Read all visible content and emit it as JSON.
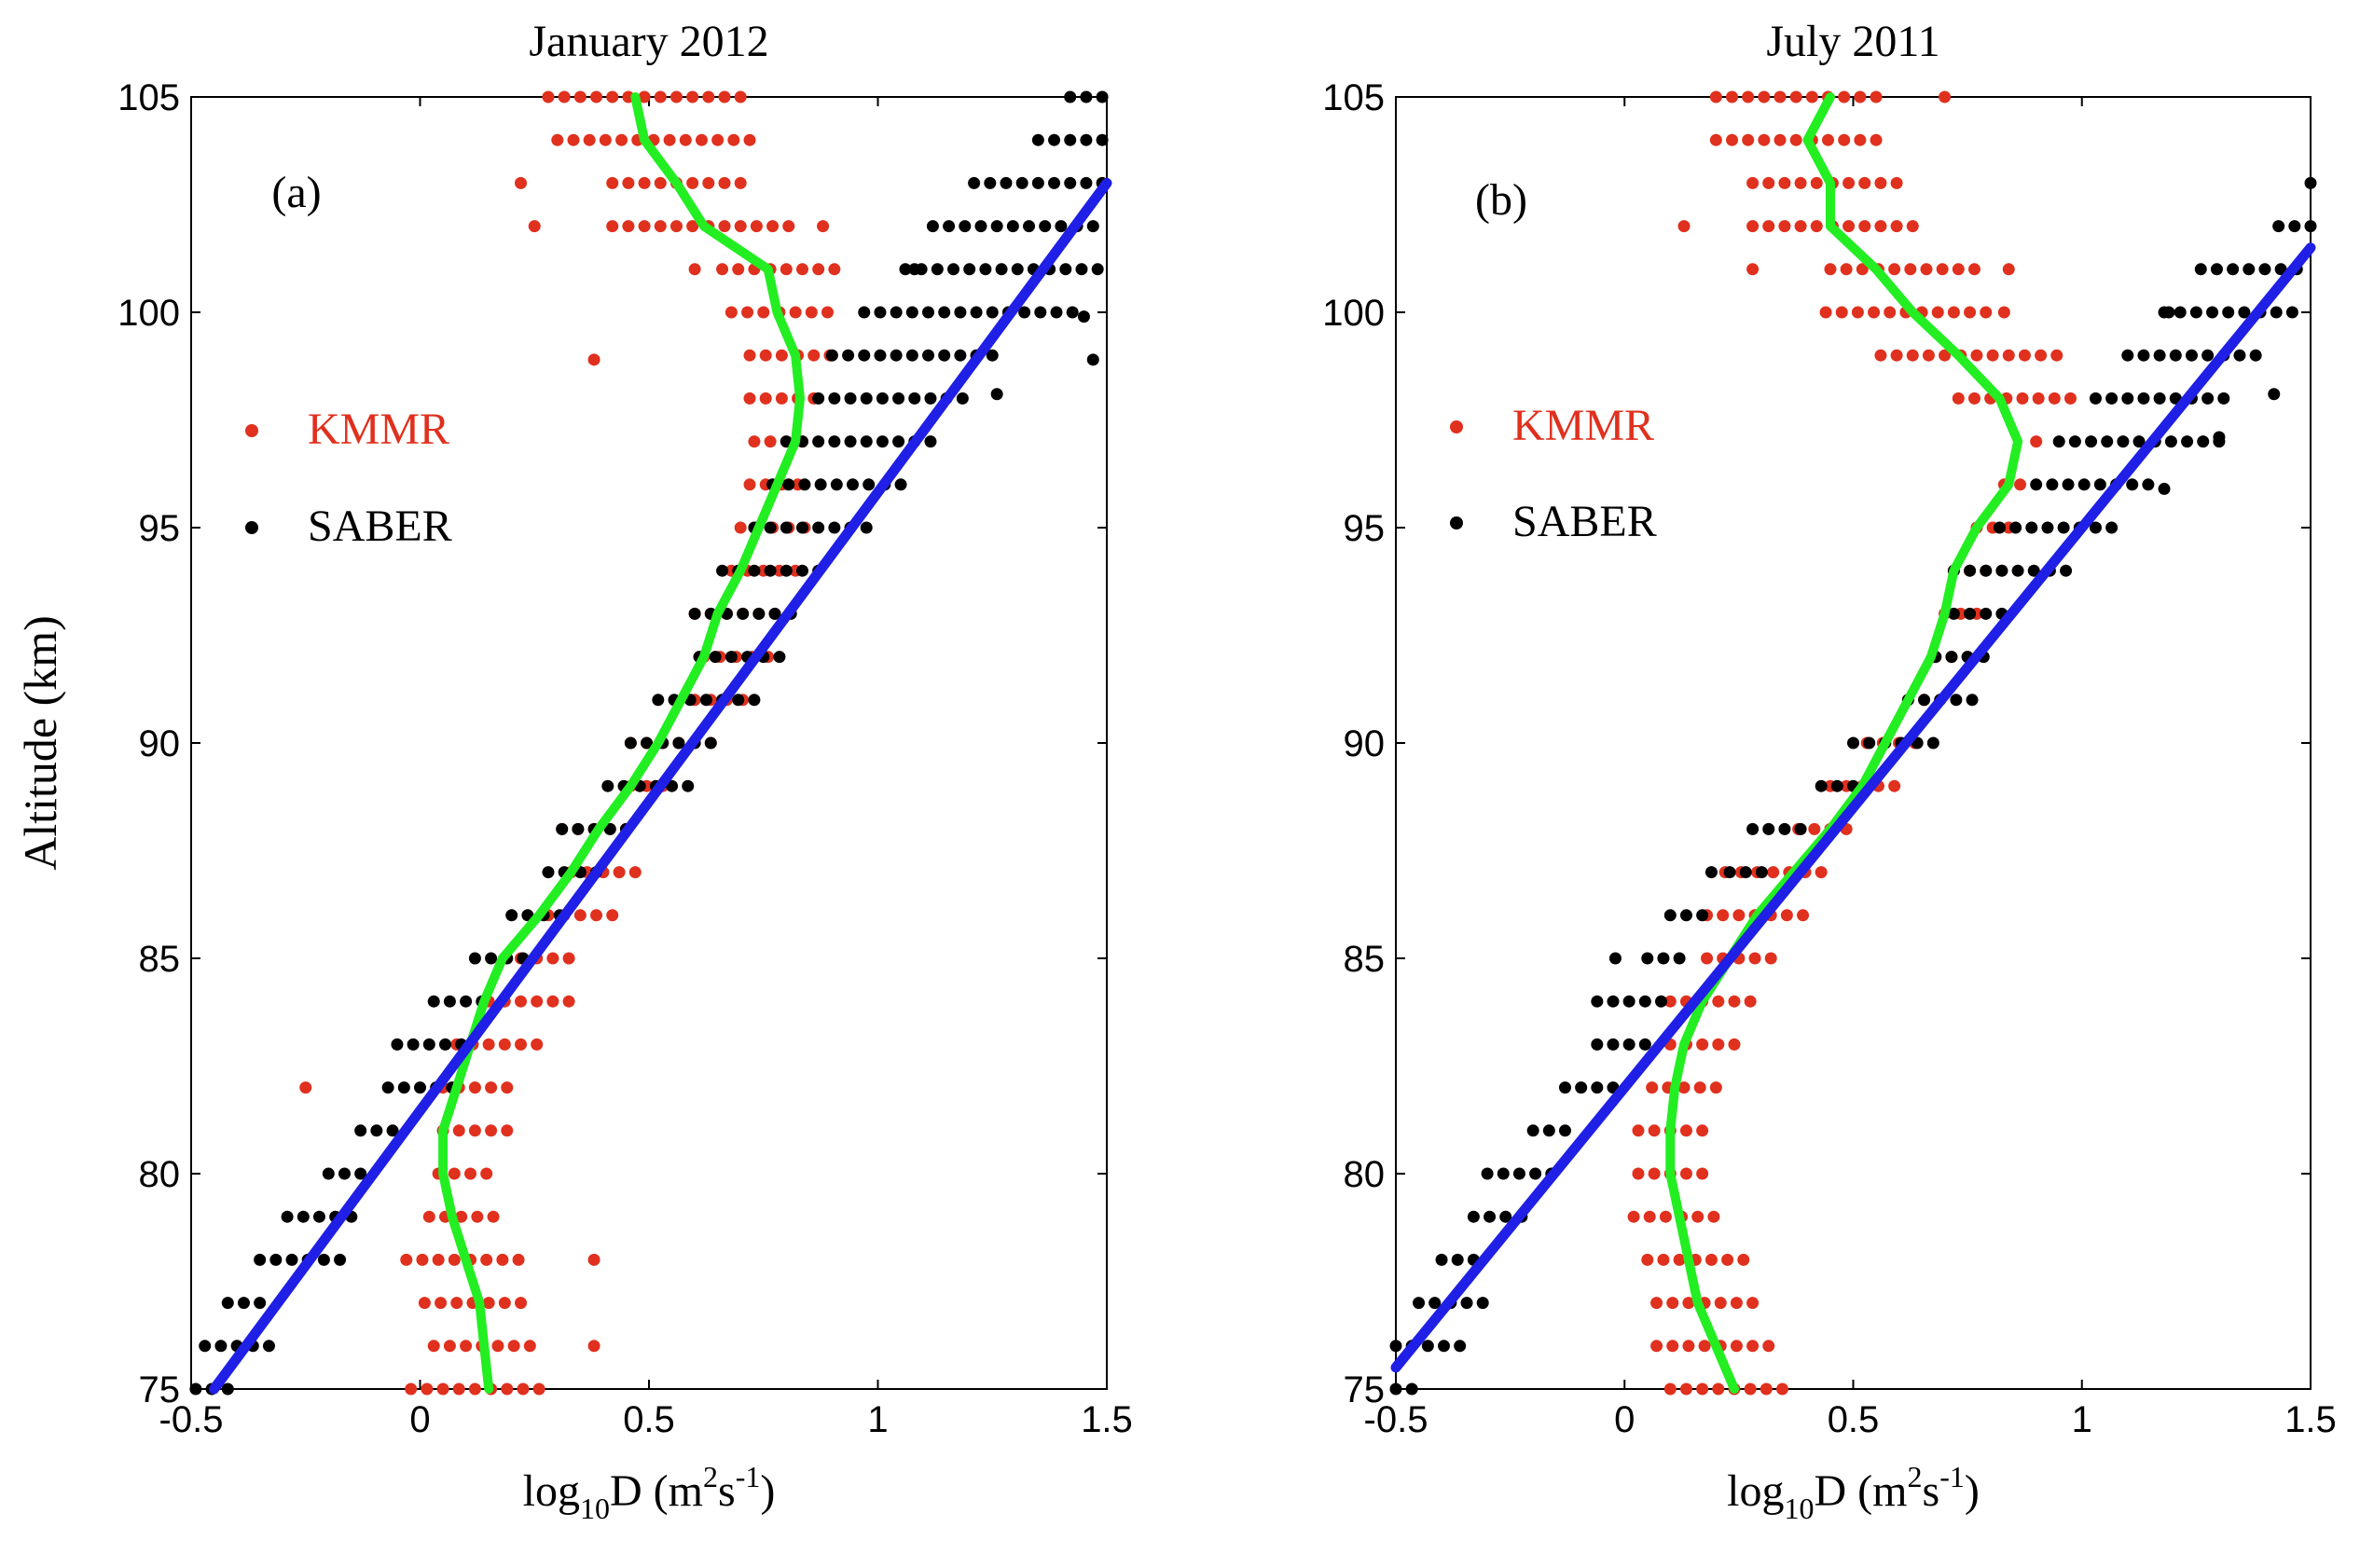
{
  "figure": {
    "ylabel": "Altitude (km)",
    "xlabel_parts": {
      "base": "log",
      "sub": "10",
      "var": "D (m",
      "sup1": "2",
      "mid": "s",
      "sup2": "-1",
      "end": ")"
    }
  },
  "colors": {
    "kmmr": "#e0301e",
    "saber": "#000000",
    "green": "#22ee22",
    "blue": "#1f1fe6"
  },
  "chart_data": [
    {
      "type": "scatter",
      "title": "January 2012",
      "panel_label": "(a)",
      "xlim": [
        -0.5,
        1.5
      ],
      "ylim": [
        75,
        105
      ],
      "xticks": [
        -0.5,
        0,
        0.5,
        1,
        1.5
      ],
      "yticks": [
        75,
        80,
        85,
        90,
        95,
        100,
        105
      ],
      "xtick_labels": [
        "-0.5",
        "0",
        "0.5",
        "1",
        "1.5"
      ],
      "ytick_labels": [
        "75",
        "80",
        "85",
        "90",
        "95",
        "100",
        "105"
      ],
      "legend": {
        "kmmr": "KMMR",
        "saber": "SABER"
      },
      "kmmr_rows": [
        [
          75,
          -0.02,
          0.28
        ],
        [
          76,
          0.03,
          0.26
        ],
        [
          77,
          0.01,
          0.24
        ],
        [
          78,
          -0.03,
          0.22
        ],
        [
          79,
          0.02,
          0.19
        ],
        [
          80,
          0.04,
          0.15
        ],
        [
          81,
          0.05,
          0.22
        ],
        [
          82,
          0.05,
          0.2
        ],
        [
          83,
          0.08,
          0.28
        ],
        [
          84,
          0.15,
          0.33
        ],
        [
          85,
          0.22,
          0.35
        ],
        [
          86,
          0.28,
          0.42
        ],
        [
          87,
          0.33,
          0.47
        ],
        [
          88,
          0.31,
          0.48
        ],
        [
          89,
          0.46,
          0.56
        ],
        [
          90,
          0.46,
          0.66
        ],
        [
          91,
          0.6,
          0.73
        ],
        [
          92,
          0.62,
          0.76
        ],
        [
          93,
          0.6,
          0.78
        ],
        [
          94,
          0.68,
          0.84
        ],
        [
          95,
          0.7,
          0.86
        ],
        [
          96,
          0.72,
          0.85
        ],
        [
          97,
          0.73,
          0.86
        ],
        [
          98,
          0.72,
          0.88
        ],
        [
          99,
          0.72,
          0.91
        ],
        [
          100,
          0.68,
          0.92
        ],
        [
          101,
          0.66,
          0.92
        ],
        [
          102,
          0.42,
          0.83
        ],
        [
          103,
          0.42,
          0.72
        ],
        [
          104,
          0.3,
          0.75
        ],
        [
          105,
          0.28,
          0.7
        ]
      ],
      "kmmr_outliers": [
        [
          -0.25,
          82
        ],
        [
          0.38,
          78
        ],
        [
          0.38,
          76
        ],
        [
          0.38,
          98.9
        ],
        [
          0.22,
          103
        ],
        [
          0.25,
          102
        ],
        [
          0.88,
          102
        ],
        [
          0.6,
          101
        ]
      ],
      "saber_rows": [
        [
          75,
          -0.49,
          -0.42
        ],
        [
          76,
          -0.47,
          -0.32
        ],
        [
          77,
          -0.42,
          -0.33
        ],
        [
          78,
          -0.35,
          -0.17
        ],
        [
          79,
          -0.29,
          -0.12
        ],
        [
          80,
          -0.2,
          -0.1
        ],
        [
          81,
          -0.13,
          -0.03
        ],
        [
          82,
          -0.07,
          0.07
        ],
        [
          83,
          -0.05,
          0.1
        ],
        [
          84,
          0.03,
          0.15
        ],
        [
          85,
          0.12,
          0.25
        ],
        [
          86,
          0.2,
          0.33
        ],
        [
          87,
          0.28,
          0.41
        ],
        [
          88,
          0.31,
          0.45
        ],
        [
          89,
          0.41,
          0.59
        ],
        [
          90,
          0.46,
          0.64
        ],
        [
          91,
          0.52,
          0.74
        ],
        [
          92,
          0.61,
          0.79
        ],
        [
          93,
          0.6,
          0.84
        ],
        [
          94,
          0.66,
          0.88
        ],
        [
          95,
          0.73,
          0.98
        ],
        [
          96,
          0.77,
          1.05
        ],
        [
          97,
          0.8,
          1.13
        ],
        [
          98,
          0.87,
          1.19
        ],
        [
          99,
          0.9,
          1.27
        ],
        [
          100,
          0.97,
          1.45
        ],
        [
          101,
          1.06,
          1.5
        ],
        [
          102,
          1.12,
          1.5
        ],
        [
          103,
          1.21,
          1.5
        ],
        [
          104,
          1.35,
          1.5
        ],
        [
          105,
          1.42,
          1.5
        ]
      ],
      "saber_outliers": [
        [
          1.47,
          98.9
        ],
        [
          1.26,
          98.1
        ],
        [
          1.08,
          101
        ],
        [
          1.45,
          99.9
        ]
      ],
      "green_x": [
        0.15,
        0.14,
        0.13,
        0.1,
        0.07,
        0.05,
        0.05,
        0.08,
        0.11,
        0.14,
        0.18,
        0.26,
        0.33,
        0.39,
        0.46,
        0.52,
        0.57,
        0.62,
        0.65,
        0.7,
        0.74,
        0.78,
        0.82,
        0.83,
        0.82,
        0.78,
        0.76,
        0.62,
        0.56,
        0.49,
        0.47
      ],
      "blue_line": [
        [
          -0.45,
          75
        ],
        [
          1.5,
          103
        ]
      ]
    },
    {
      "type": "scatter",
      "title": "July 2011",
      "panel_label": "(b)",
      "xlim": [
        -0.5,
        1.5
      ],
      "ylim": [
        75,
        105
      ],
      "xticks": [
        -0.5,
        0,
        0.5,
        1,
        1.5
      ],
      "yticks": [
        75,
        80,
        85,
        90,
        95,
        100,
        105
      ],
      "xtick_labels": [
        "-0.5",
        "0",
        "0.5",
        "1",
        "1.5"
      ],
      "ytick_labels": [
        "75",
        "80",
        "85",
        "90",
        "95",
        "100",
        "105"
      ],
      "legend": {
        "kmmr": "KMMR",
        "saber": "SABER"
      },
      "kmmr_rows": [
        [
          75,
          0.1,
          0.37
        ],
        [
          76,
          0.07,
          0.34
        ],
        [
          77,
          0.07,
          0.3
        ],
        [
          78,
          0.05,
          0.26
        ],
        [
          79,
          0.02,
          0.2
        ],
        [
          80,
          0.03,
          0.19
        ],
        [
          81,
          0.03,
          0.19
        ],
        [
          82,
          0.06,
          0.2
        ],
        [
          83,
          0.1,
          0.25
        ],
        [
          84,
          0.1,
          0.29
        ],
        [
          85,
          0.18,
          0.32
        ],
        [
          86,
          0.18,
          0.4
        ],
        [
          87,
          0.22,
          0.45
        ],
        [
          88,
          0.38,
          0.5
        ],
        [
          89,
          0.45,
          0.6
        ],
        [
          90,
          0.53,
          0.65
        ],
        [
          91,
          0.62,
          0.7
        ],
        [
          92,
          0.68,
          0.75
        ],
        [
          93,
          0.7,
          0.8
        ],
        [
          94,
          0.72,
          0.83
        ],
        [
          95,
          0.77,
          0.86
        ],
        [
          96,
          0.83,
          0.88
        ],
        [
          97,
          0.9,
          0.93
        ],
        [
          98,
          0.73,
          0.98
        ],
        [
          99,
          0.56,
          0.95
        ],
        [
          100,
          0.44,
          0.8
        ],
        [
          101,
          0.45,
          0.77
        ],
        [
          102,
          0.28,
          0.64
        ],
        [
          103,
          0.28,
          0.6
        ],
        [
          104,
          0.2,
          0.57
        ],
        [
          105,
          0.2,
          0.55
        ]
      ],
      "kmmr_outliers": [
        [
          0.13,
          102
        ],
        [
          0.28,
          101
        ],
        [
          0.83,
          100
        ],
        [
          0.84,
          101
        ],
        [
          0.7,
          105
        ]
      ],
      "saber_rows": [
        [
          75,
          -0.5,
          -0.46
        ],
        [
          76,
          -0.5,
          -0.36
        ],
        [
          77,
          -0.45,
          -0.28
        ],
        [
          78,
          -0.4,
          -0.3
        ],
        [
          79,
          -0.33,
          -0.2
        ],
        [
          80,
          -0.3,
          -0.16
        ],
        [
          81,
          -0.2,
          -0.1
        ],
        [
          82,
          -0.13,
          -0.01
        ],
        [
          83,
          -0.06,
          0.05
        ],
        [
          84,
          -0.06,
          0.1
        ],
        [
          85,
          0.05,
          0.15
        ],
        [
          86,
          0.1,
          0.2
        ],
        [
          87,
          0.23,
          0.3
        ],
        [
          88,
          0.28,
          0.4
        ],
        [
          89,
          0.43,
          0.5
        ],
        [
          90,
          0.5,
          0.68
        ],
        [
          91,
          0.62,
          0.77
        ],
        [
          92,
          0.68,
          0.8
        ],
        [
          93,
          0.72,
          0.85
        ],
        [
          94,
          0.72,
          0.97
        ],
        [
          95,
          0.82,
          1.08
        ],
        [
          96,
          0.9,
          1.15
        ],
        [
          97,
          0.95,
          1.32
        ],
        [
          98,
          1.03,
          1.31
        ],
        [
          99,
          1.1,
          1.38
        ],
        [
          100,
          1.18,
          1.48
        ],
        [
          101,
          1.26,
          1.49
        ],
        [
          102,
          1.43,
          1.5
        ],
        [
          103,
          1.5,
          1.5
        ]
      ],
      "saber_outliers": [
        [
          -0.02,
          85
        ],
        [
          0.19,
          87
        ],
        [
          1.18,
          95.9
        ],
        [
          1.3,
          97.1
        ],
        [
          1.42,
          98.1
        ],
        [
          1.19,
          100
        ]
      ],
      "green_x": [
        0.24,
        0.2,
        0.16,
        0.14,
        0.12,
        0.1,
        0.1,
        0.11,
        0.13,
        0.17,
        0.23,
        0.29,
        0.37,
        0.45,
        0.52,
        0.57,
        0.62,
        0.67,
        0.7,
        0.72,
        0.77,
        0.84,
        0.86,
        0.82,
        0.73,
        0.63,
        0.55,
        0.45,
        0.45,
        0.4,
        0.45
      ],
      "blue_line": [
        [
          -0.5,
          75.5
        ],
        [
          1.5,
          101.5
        ]
      ]
    }
  ]
}
